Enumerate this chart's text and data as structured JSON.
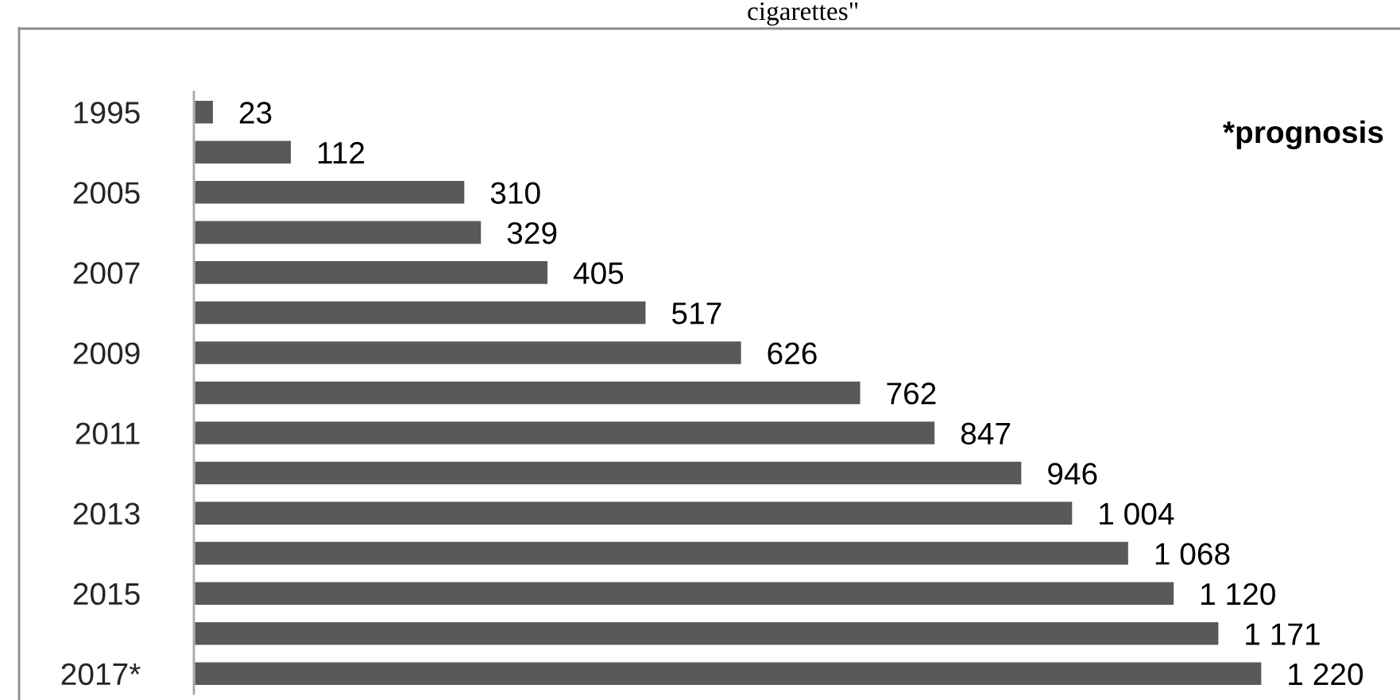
{
  "chart_data": {
    "type": "bar",
    "orientation": "horizontal",
    "title": "cigarettes\"",
    "categories": [
      "1995",
      null,
      "2005",
      null,
      "2007",
      null,
      "2009",
      null,
      "2011",
      null,
      "2013",
      null,
      "2015",
      null,
      "2017*"
    ],
    "values": [
      23,
      112,
      310,
      329,
      405,
      517,
      626,
      762,
      847,
      946,
      1004,
      1068,
      1120,
      1171,
      1220
    ],
    "value_labels": [
      "23",
      "112",
      "310",
      "329",
      "405",
      "517",
      "626",
      "762",
      "847",
      "946",
      "1 004",
      "1 068",
      "1 120",
      "1 171",
      "1 220"
    ],
    "color": "#595959",
    "tick_labels": "y",
    "annotations": [
      "*prognosis"
    ]
  }
}
